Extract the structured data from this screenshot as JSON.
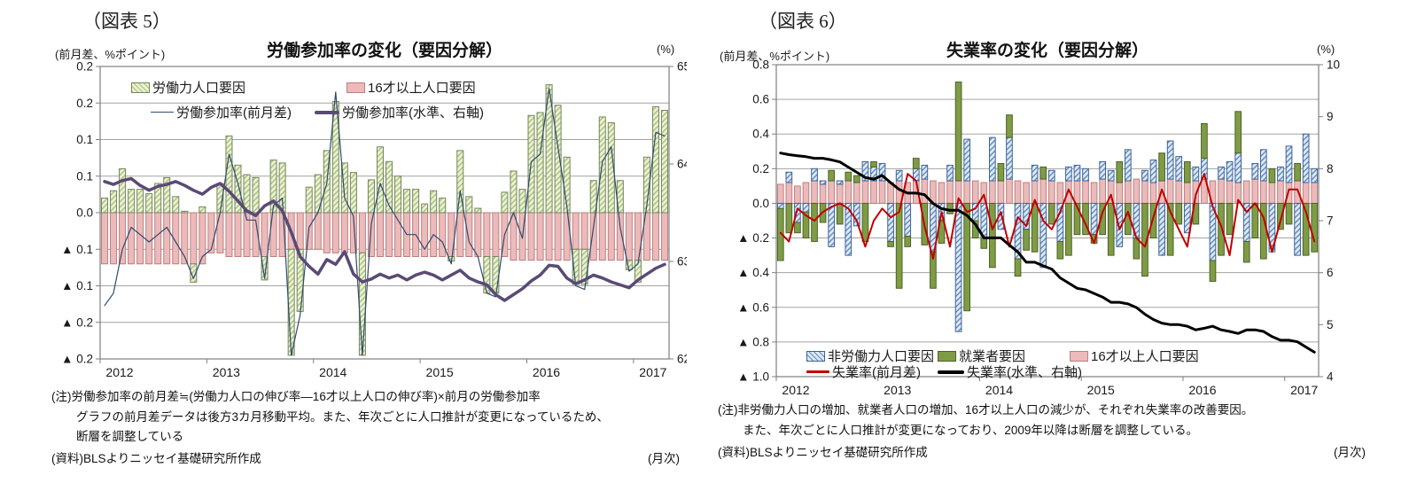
{
  "figures": [
    {
      "figure_label": "（図表 5）",
      "unit_label": "(前月差、%ポイント)",
      "title": "労働参加率の変化（要因分解）",
      "right_axis_unit": "(%)",
      "notes": [
        "(注)労働参加率の前月差≒(労働力人口の伸び率―16才以上人口の伸び率)×前月の労働参加率",
        "グラフの前月差データは後方3カ月移動平均。また、年次ごとに人口推計が変更になっているため、",
        "断層を調整している"
      ],
      "source": "(資料)BLSよりニッセイ基礎研究所作成",
      "frequency_label": "(月次)"
    },
    {
      "figure_label": "（図表 6）",
      "unit_label": "(前月差、%ポイント)",
      "title": "失業率の変化（要因分解）",
      "right_axis_unit": "(%)",
      "notes": [
        "(注)非労働力人口の増加、就業者人口の増加、16才以上人口の減少が、それぞれ失業率の改善要因。",
        "また、年次ごとに人口推計が変更になっており、2009年以降は断層を調整している。"
      ],
      "source": "(資料)BLSよりニッセイ基礎研究所作成",
      "frequency_label": "(月次)"
    }
  ],
  "chart_data": [
    {
      "id": "fig5",
      "type": "bar",
      "stacked": true,
      "title": "労働参加率の変化（要因分解）",
      "x_start": "2012-01",
      "x_years": [
        "2012",
        "2013",
        "2014",
        "2015",
        "2016",
        "2017"
      ],
      "left_axis": {
        "min": -0.2,
        "max": 0.2,
        "step": 0.05,
        "tick_labels": [
          "0.2",
          "0.2",
          "0.1",
          "0.1",
          "0.0",
          "▲ 0.1",
          "▲ 0.1",
          "▲ 0.2",
          "▲ 0.2"
        ]
      },
      "right_axis": {
        "min": 62,
        "max": 65,
        "tick_labels": [
          "65",
          "64",
          "63",
          "62"
        ]
      },
      "bar_series": [
        {
          "name": "16才以上人口要因",
          "style": "pink",
          "color": "#ecbaba",
          "values": [
            -0.07,
            -0.07,
            -0.07,
            -0.07,
            -0.07,
            -0.07,
            -0.07,
            -0.07,
            -0.07,
            -0.07,
            -0.07,
            -0.07,
            -0.055,
            -0.055,
            -0.06,
            -0.06,
            -0.06,
            -0.06,
            -0.06,
            -0.06,
            -0.06,
            -0.05,
            -0.05,
            -0.05,
            -0.05,
            -0.055,
            -0.055,
            -0.055,
            -0.055,
            -0.055,
            -0.06,
            -0.06,
            -0.06,
            -0.06,
            -0.06,
            -0.06,
            -0.06,
            -0.06,
            -0.06,
            -0.06,
            -0.06,
            -0.06,
            -0.06,
            -0.06,
            -0.06,
            -0.06,
            -0.065,
            -0.065,
            -0.065,
            -0.065,
            -0.065,
            -0.065,
            -0.065,
            -0.05,
            -0.05,
            -0.065,
            -0.065,
            -0.065,
            -0.065,
            -0.065,
            -0.065,
            -0.065,
            -0.065,
            -0.065
          ]
        },
        {
          "name": "労働力人口要因",
          "style": "green_hatch",
          "color": "#e9f1d2",
          "values": [
            0.02,
            0.03,
            0.06,
            0.032,
            0.032,
            0.026,
            0.04,
            0.048,
            0.022,
            0.002,
            -0.025,
            0.008,
            0.0,
            0.04,
            0.105,
            0.065,
            0.052,
            0.048,
            -0.032,
            0.072,
            0.068,
            -0.145,
            -0.085,
            0.035,
            0.052,
            0.085,
            0.152,
            0.068,
            0.055,
            -0.14,
            0.045,
            0.09,
            0.07,
            0.05,
            0.032,
            0.032,
            0.012,
            0.03,
            0.02,
            -0.006,
            0.085,
            0.022,
            0.006,
            -0.05,
            -0.05,
            0.028,
            0.057,
            0.032,
            0.133,
            0.137,
            0.175,
            0.147,
            0.076,
            -0.048,
            -0.048,
            0.044,
            0.131,
            0.123,
            0.044,
            -0.013,
            -0.03,
            0.076,
            0.145,
            0.14
          ]
        }
      ],
      "line_series": [
        {
          "name": "労働参加率(前月差)",
          "style": "thin_navy",
          "axis": "left",
          "color": "#2f4a6f",
          "values": [
            -0.127,
            -0.11,
            -0.05,
            -0.02,
            -0.03,
            -0.04,
            -0.03,
            -0.02,
            -0.04,
            -0.06,
            -0.09,
            -0.06,
            -0.05,
            0.0,
            0.08,
            0.04,
            -0.01,
            -0.01,
            -0.09,
            0.01,
            0.02,
            -0.195,
            -0.14,
            -0.02,
            0.0,
            0.04,
            0.165,
            0.02,
            -0.005,
            -0.195,
            -0.015,
            0.04,
            0.01,
            -0.01,
            -0.03,
            -0.03,
            -0.05,
            -0.03,
            -0.04,
            -0.07,
            0.03,
            -0.04,
            -0.06,
            -0.11,
            -0.115,
            -0.03,
            0.0,
            -0.035,
            0.07,
            0.08,
            0.17,
            0.09,
            0.01,
            -0.1,
            -0.105,
            -0.02,
            0.07,
            0.09,
            -0.02,
            -0.08,
            -0.07,
            0.01,
            0.11,
            0.105
          ]
        },
        {
          "name": "労働参加率(水準、右軸)",
          "style": "thick_purple",
          "axis": "right",
          "color": "#5a4a76",
          "values": [
            63.82,
            63.79,
            63.83,
            63.85,
            63.78,
            63.73,
            63.77,
            63.79,
            63.82,
            63.78,
            63.73,
            63.69,
            63.76,
            63.8,
            63.72,
            63.62,
            63.52,
            63.47,
            63.57,
            63.62,
            63.52,
            63.3,
            63.05,
            62.95,
            62.87,
            63.02,
            62.97,
            63.1,
            62.87,
            62.79,
            62.82,
            62.87,
            62.83,
            62.86,
            62.81,
            62.86,
            62.89,
            62.86,
            62.81,
            62.86,
            62.91,
            62.83,
            62.79,
            62.76,
            62.66,
            62.6,
            62.66,
            62.72,
            62.8,
            62.86,
            62.96,
            62.95,
            62.83,
            62.77,
            62.81,
            62.86,
            62.83,
            62.79,
            62.76,
            62.73,
            62.81,
            62.87,
            62.93,
            62.97
          ]
        }
      ]
    },
    {
      "id": "fig6",
      "type": "bar",
      "stacked": true,
      "title": "失業率の変化（要因分解）",
      "x_start": "2012-01",
      "x_years": [
        "2012",
        "2013",
        "2014",
        "2015",
        "2016",
        "2017"
      ],
      "left_axis": {
        "min": -1.0,
        "max": 0.8,
        "step": 0.2,
        "tick_labels": [
          "0.8",
          "0.6",
          "0.4",
          "0.2",
          "0.0",
          "▲ 0.2",
          "▲ 0.4",
          "▲ 0.6",
          "▲ 0.8",
          "▲ 1.0"
        ]
      },
      "right_axis": {
        "min": 4,
        "max": 10,
        "tick_labels": [
          "10",
          "9",
          "8",
          "7",
          "6",
          "5",
          "4"
        ]
      },
      "bar_series": [
        {
          "name": "16才以上人口要因",
          "style": "pink",
          "color": "#ecbaba",
          "values": [
            0.11,
            0.12,
            0.1,
            0.12,
            0.13,
            0.11,
            0.13,
            0.11,
            0.13,
            0.12,
            0.13,
            0.13,
            0.13,
            0.12,
            0.13,
            0.12,
            0.13,
            0.14,
            0.13,
            0.12,
            0.13,
            0.13,
            0.13,
            0.13,
            0.12,
            0.13,
            0.13,
            0.14,
            0.13,
            0.12,
            0.13,
            0.14,
            0.13,
            0.12,
            0.13,
            0.13,
            0.13,
            0.12,
            0.14,
            0.13,
            0.12,
            0.13,
            0.14,
            0.13,
            0.12,
            0.13,
            0.14,
            0.13,
            0.12,
            0.13,
            0.14,
            0.13,
            0.14,
            0.13,
            0.12,
            0.13,
            0.14,
            0.13,
            0.12,
            0.13,
            0.12,
            0.13,
            0.12,
            0.12
          ]
        },
        {
          "name": "非労働力人口要因",
          "style": "blue_hatch",
          "color": "#dce9f5",
          "values": [
            -0.03,
            0.06,
            -0.11,
            -0.05,
            0.07,
            0.02,
            -0.25,
            0.02,
            -0.3,
            -0.13,
            0.11,
            0.08,
            0.1,
            -0.22,
            0.06,
            -0.19,
            0.07,
            0.08,
            -0.28,
            -0.1,
            0.09,
            -0.74,
            0.24,
            -0.1,
            -0.2,
            0.25,
            -0.15,
            0.24,
            -0.32,
            -0.15,
            0.09,
            -0.37,
            0.06,
            -0.22,
            0.08,
            0.09,
            0.07,
            -0.18,
            0.1,
            0.06,
            -0.25,
            0.18,
            -0.2,
            0.06,
            0.13,
            -0.3,
            0.22,
            0.14,
            -0.17,
            0.08,
            0.12,
            -0.33,
            0.07,
            0.11,
            0.17,
            -0.22,
            0.09,
            0.18,
            -0.28,
            0.08,
            0.21,
            -0.3,
            0.28,
            0.08
          ]
        },
        {
          "name": "就業者要因",
          "style": "olive",
          "color": "#7e9c45",
          "values": [
            -0.3,
            -0.17,
            -0.06,
            -0.15,
            -0.22,
            -0.11,
            0.06,
            -0.12,
            0.05,
            0.04,
            -0.22,
            0.03,
            0.0,
            -0.03,
            -0.49,
            -0.06,
            0.06,
            -0.24,
            -0.21,
            -0.13,
            -0.06,
            0.57,
            -0.62,
            -0.1,
            -0.06,
            -0.37,
            0.1,
            0.13,
            -0.1,
            -0.12,
            -0.28,
            0.07,
            -0.12,
            -0.1,
            -0.3,
            -0.18,
            -0.18,
            -0.05,
            -0.18,
            -0.3,
            0.12,
            -0.18,
            -0.12,
            -0.42,
            -0.2,
            0.16,
            -0.3,
            -0.12,
            0.12,
            -0.12,
            0.2,
            -0.12,
            -0.3,
            -0.18,
            0.24,
            -0.12,
            -0.2,
            -0.32,
            0.08,
            -0.15,
            -0.12,
            0.1,
            -0.3,
            -0.28
          ]
        }
      ],
      "line_series": [
        {
          "name": "失業率(前月差)",
          "style": "red",
          "axis": "left",
          "color": "#c00000",
          "values": [
            -0.17,
            -0.22,
            -0.03,
            -0.07,
            -0.1,
            -0.05,
            -0.02,
            0.0,
            -0.03,
            -0.1,
            -0.25,
            -0.1,
            -0.03,
            -0.08,
            -0.05,
            0.17,
            0.13,
            -0.13,
            -0.32,
            -0.05,
            -0.25,
            0.03,
            -0.05,
            -0.03,
            0.05,
            -0.15,
            -0.05,
            -0.25,
            -0.08,
            -0.13,
            0.02,
            -0.1,
            -0.15,
            -0.05,
            0.08,
            -0.02,
            -0.12,
            -0.23,
            -0.05,
            0.05,
            -0.15,
            -0.05,
            -0.2,
            -0.25,
            -0.08,
            0.08,
            -0.05,
            -0.15,
            -0.25,
            0.05,
            0.17,
            -0.02,
            -0.13,
            -0.3,
            0.02,
            -0.05,
            0.0,
            -0.08,
            -0.28,
            -0.1,
            0.08,
            0.08,
            -0.05,
            -0.22
          ]
        },
        {
          "name": "失業率(水準、右軸)",
          "style": "black",
          "axis": "right",
          "color": "#000000",
          "values": [
            8.3,
            8.27,
            8.25,
            8.23,
            8.2,
            8.2,
            8.17,
            8.13,
            8.03,
            7.93,
            7.83,
            7.8,
            7.87,
            7.73,
            7.6,
            7.53,
            7.53,
            7.5,
            7.33,
            7.23,
            7.2,
            7.2,
            7.1,
            6.93,
            6.67,
            6.67,
            6.67,
            6.53,
            6.4,
            6.2,
            6.2,
            6.13,
            6.07,
            5.9,
            5.8,
            5.7,
            5.67,
            5.6,
            5.53,
            5.43,
            5.43,
            5.4,
            5.33,
            5.2,
            5.1,
            5.03,
            5.0,
            5.0,
            4.97,
            4.9,
            4.93,
            4.97,
            4.9,
            4.87,
            4.83,
            4.9,
            4.9,
            4.87,
            4.77,
            4.7,
            4.7,
            4.67,
            4.57,
            4.47
          ]
        }
      ]
    }
  ]
}
